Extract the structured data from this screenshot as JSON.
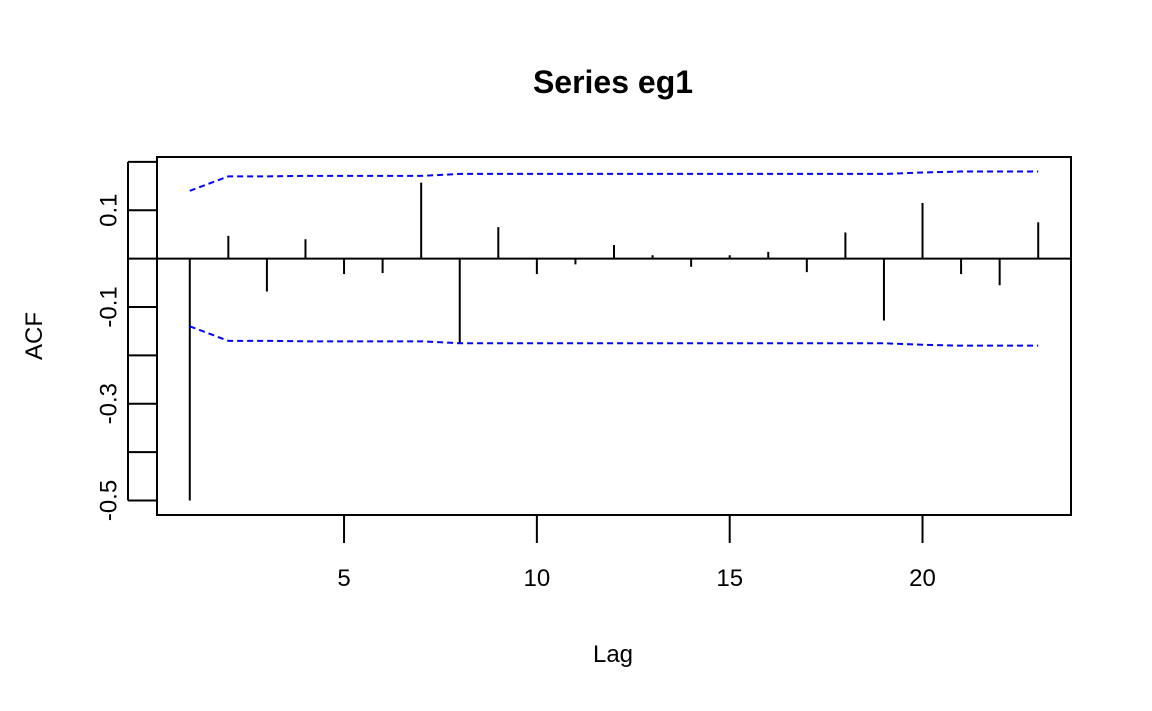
{
  "chart_data": {
    "type": "bar",
    "title": "Series eg1",
    "xlabel": "Lag",
    "ylabel": "ACF",
    "xlim": [
      0.15,
      23.85
    ],
    "ylim": [
      -0.53,
      0.21
    ],
    "x_ticks": [
      5,
      10,
      15,
      20
    ],
    "y_ticks": [
      -0.5,
      -0.4,
      -0.3,
      -0.2,
      -0.1,
      0.0,
      0.1,
      0.2
    ],
    "y_tick_labels": [
      "-0.5",
      "",
      "-0.3",
      "",
      "-0.1",
      "",
      "0.1",
      ""
    ],
    "grid": false,
    "zero_line": true,
    "lags": [
      1,
      2,
      3,
      4,
      5,
      6,
      7,
      8,
      9,
      10,
      11,
      12,
      13,
      14,
      15,
      16,
      17,
      18,
      19,
      20,
      21,
      22,
      23
    ],
    "acf": [
      -0.5,
      0.047,
      -0.068,
      0.04,
      -0.032,
      -0.03,
      0.157,
      -0.175,
      0.065,
      -0.032,
      -0.012,
      0.028,
      0.007,
      -0.017,
      0.007,
      0.014,
      -0.028,
      0.054,
      -0.128,
      0.115,
      -0.032,
      -0.055,
      0.075
    ],
    "conf_band": {
      "color": "#0000ff",
      "style": "dashed",
      "upper": [
        0.14,
        0.17,
        0.17,
        0.171,
        0.171,
        0.171,
        0.171,
        0.175,
        0.175,
        0.175,
        0.175,
        0.175,
        0.175,
        0.175,
        0.175,
        0.175,
        0.175,
        0.175,
        0.175,
        0.178,
        0.18,
        0.18,
        0.18
      ],
      "lower": [
        -0.14,
        -0.17,
        -0.17,
        -0.171,
        -0.171,
        -0.171,
        -0.171,
        -0.175,
        -0.175,
        -0.175,
        -0.175,
        -0.175,
        -0.175,
        -0.175,
        -0.175,
        -0.175,
        -0.175,
        -0.175,
        -0.175,
        -0.178,
        -0.18,
        -0.18,
        -0.18
      ]
    }
  }
}
